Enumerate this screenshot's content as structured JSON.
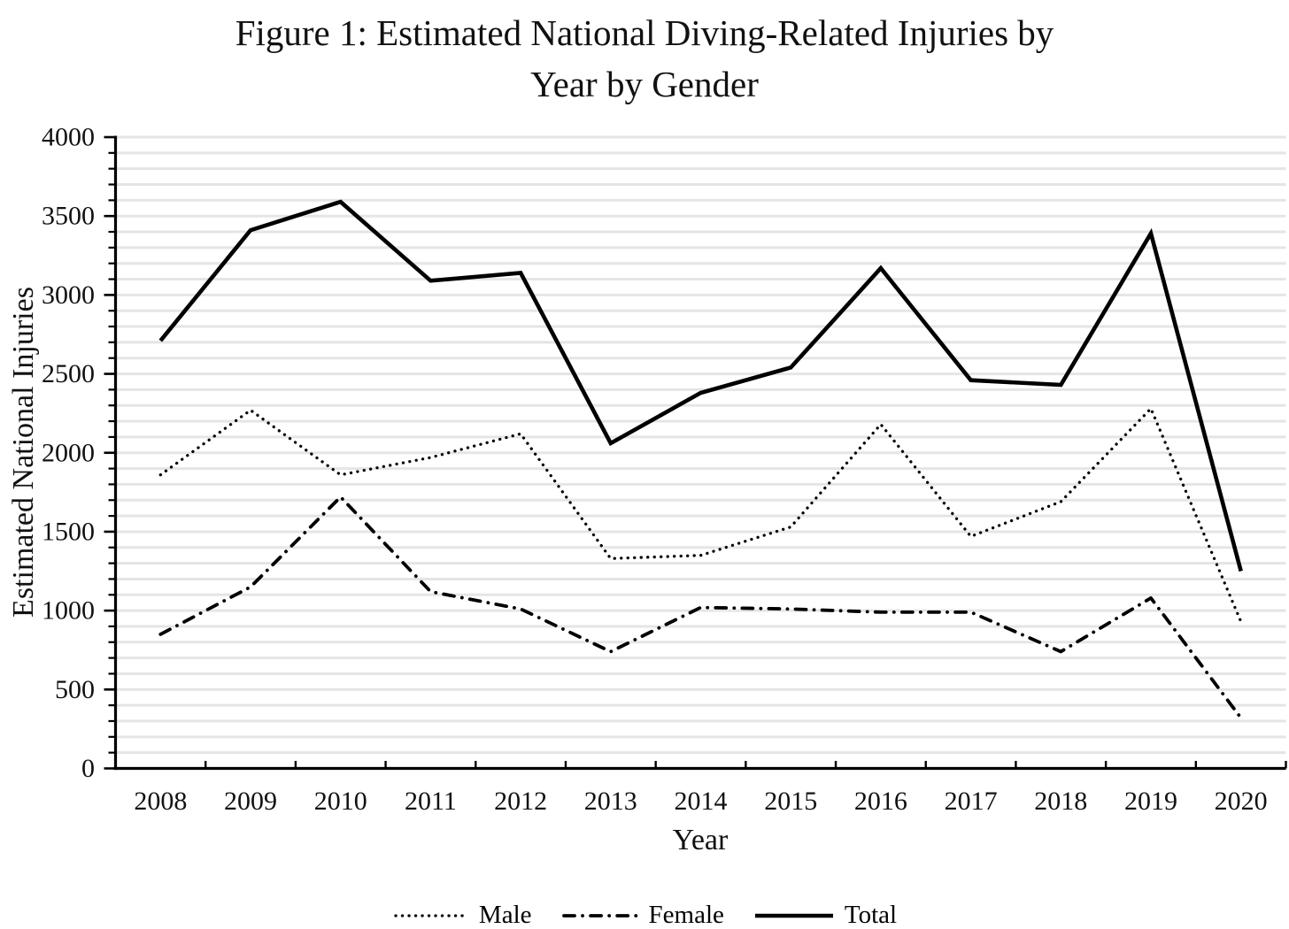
{
  "title": {
    "lines": [
      "Figure 1: Estimated National Diving-Related Injuries by",
      "Year by Gender"
    ]
  },
  "y_axis": {
    "title": "Estimated National Injuries",
    "tick_labels": [
      "0",
      "500",
      "1000",
      "1500",
      "2000",
      "2500",
      "3000",
      "3500",
      "4000"
    ]
  },
  "x_axis": {
    "title": "Year",
    "tick_labels": [
      "2008",
      "2009",
      "2010",
      "2011",
      "2012",
      "2013",
      "2014",
      "2015",
      "2016",
      "2017",
      "2018",
      "2019",
      "2020"
    ]
  },
  "legend": {
    "items": [
      {
        "label": "Male",
        "style": "dotted"
      },
      {
        "label": "Female",
        "style": "dashdot"
      },
      {
        "label": "Total",
        "style": "solid"
      }
    ]
  },
  "colors": {
    "line": "#000000",
    "gridline": "#e5e5e5",
    "background": "#ffffff",
    "text": "#111111"
  },
  "chart_data": {
    "type": "line",
    "title": "Figure 1: Estimated National Diving-Related Injuries by Year by Gender",
    "xlabel": "Year",
    "ylabel": "Estimated National Injuries",
    "x": [
      2008,
      2009,
      2010,
      2011,
      2012,
      2013,
      2014,
      2015,
      2016,
      2017,
      2018,
      2019,
      2020
    ],
    "series": [
      {
        "name": "Male",
        "style": "dotted",
        "values": [
          1860,
          2270,
          1860,
          1970,
          2120,
          1330,
          1350,
          1530,
          2180,
          1470,
          1690,
          2280,
          930
        ]
      },
      {
        "name": "Female",
        "style": "dashdot",
        "values": [
          850,
          1150,
          1720,
          1120,
          1010,
          740,
          1020,
          1010,
          990,
          990,
          740,
          1080,
          320
        ]
      },
      {
        "name": "Total",
        "style": "solid",
        "values": [
          2710,
          3410,
          3590,
          3090,
          3140,
          2060,
          2380,
          2540,
          3170,
          2460,
          2430,
          3390,
          1250
        ]
      }
    ],
    "ylim": [
      0,
      4000
    ],
    "y_tick_step": 500,
    "gridline_step": 100,
    "grid": true,
    "legend_position": "bottom"
  }
}
